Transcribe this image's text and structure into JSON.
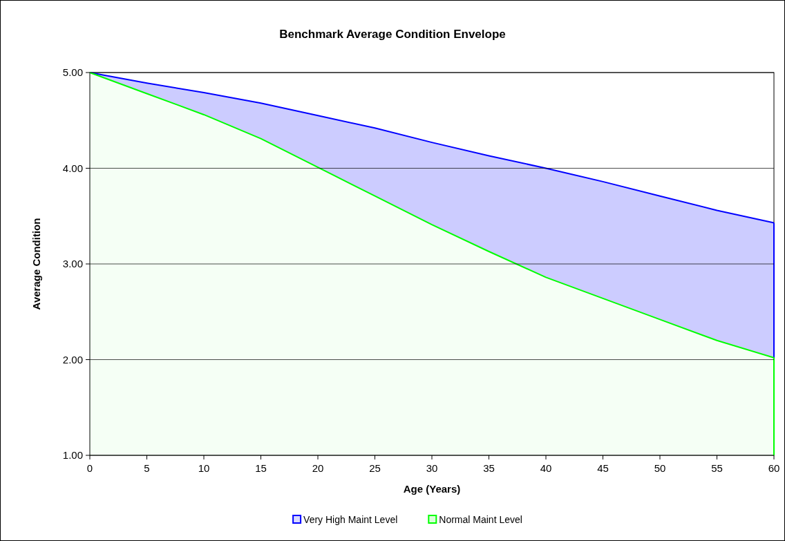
{
  "chart_data": {
    "type": "area",
    "title": "Benchmark Average Condition Envelope",
    "xlabel": "Age (Years)",
    "ylabel": "Average Condition",
    "x": [
      0,
      5,
      10,
      15,
      20,
      25,
      30,
      35,
      40,
      45,
      50,
      55,
      60
    ],
    "series": [
      {
        "name": "Very High Maint Level",
        "color": "#0000ff",
        "values": [
          5.0,
          4.89,
          4.79,
          4.68,
          4.55,
          4.42,
          4.27,
          4.13,
          4.0,
          3.86,
          3.71,
          3.56,
          3.43
        ]
      },
      {
        "name": "Normal Maint Level",
        "color": "#00ff00",
        "values": [
          5.0,
          4.78,
          4.56,
          4.31,
          4.01,
          3.71,
          3.41,
          3.13,
          2.86,
          2.64,
          2.42,
          2.2,
          2.02
        ]
      }
    ],
    "xlim": [
      0,
      60
    ],
    "xticks": [
      0,
      5,
      10,
      15,
      20,
      25,
      30,
      35,
      40,
      45,
      50,
      55,
      60
    ],
    "ylim": [
      1,
      5
    ],
    "yticks": [
      {
        "value": 1,
        "label": "1.00"
      },
      {
        "value": 2,
        "label": "2.00"
      },
      {
        "value": 3,
        "label": "3.00"
      },
      {
        "value": 4,
        "label": "4.00"
      },
      {
        "value": 5,
        "label": "5.00"
      }
    ],
    "grid": "y",
    "legend": "bottom"
  }
}
